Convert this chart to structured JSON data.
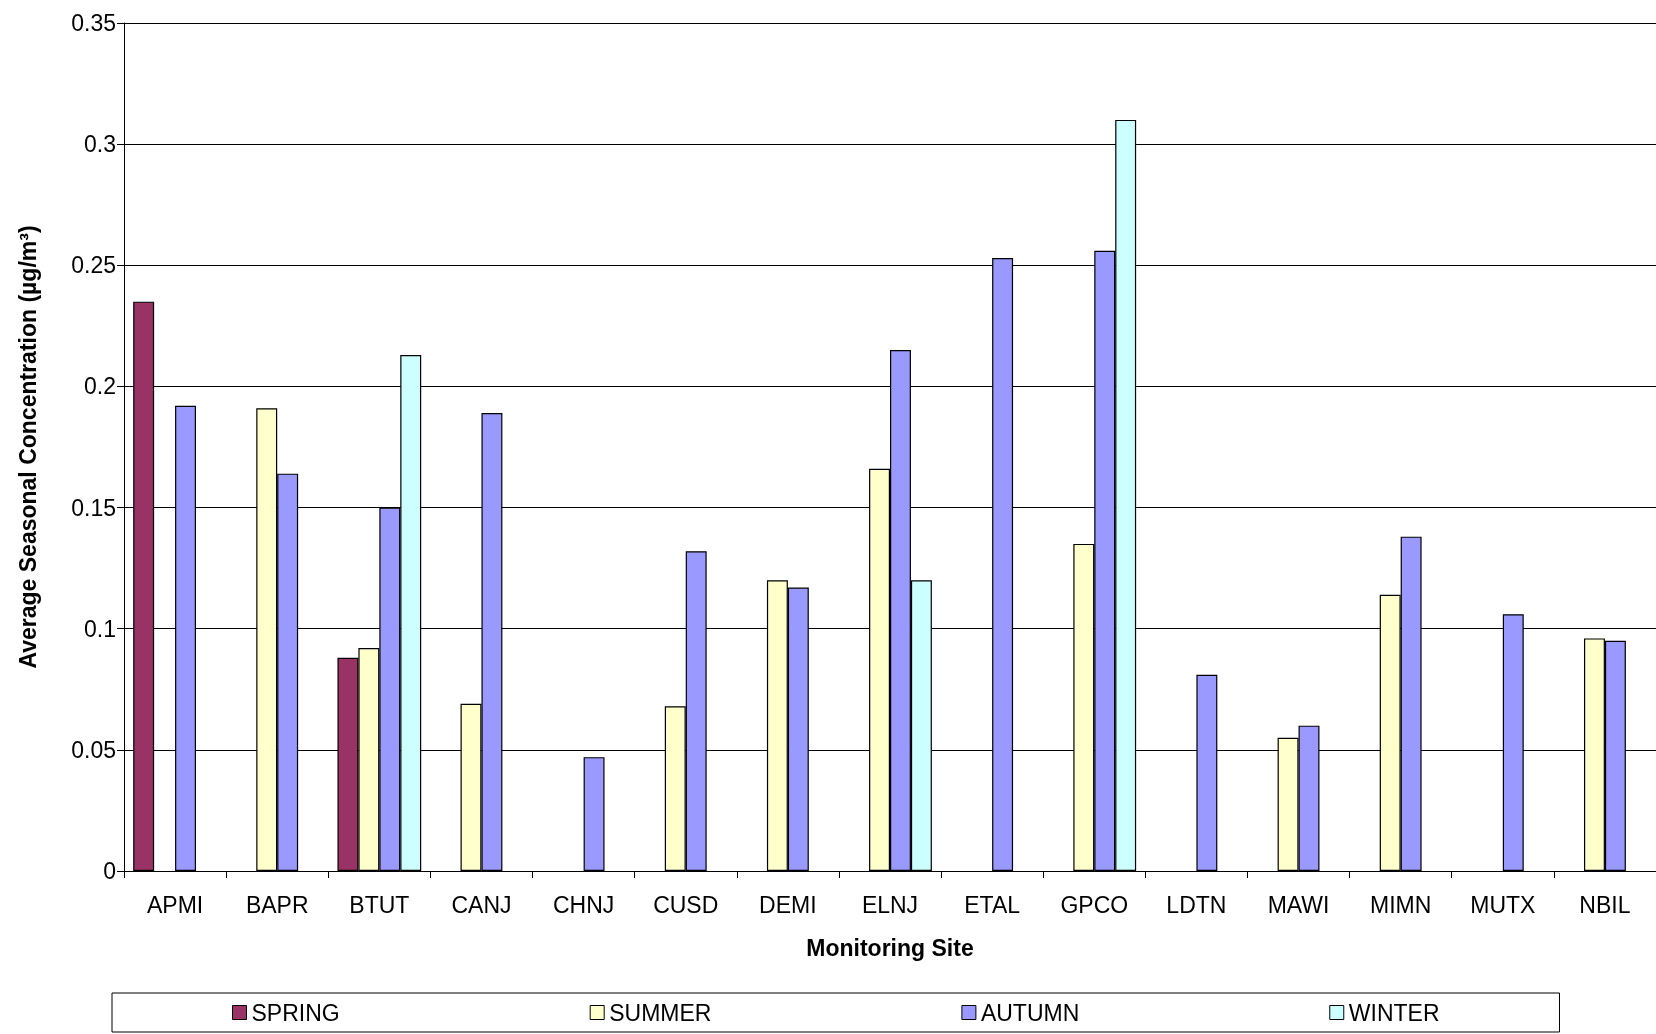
{
  "chart_data": {
    "type": "bar",
    "xlabel": "Monitoring Site",
    "ylabel": "Average Seasonal Concentration (µg/m³)",
    "categories": [
      "APMI",
      "BAPR",
      "BTUT",
      "CANJ",
      "CHNJ",
      "CUSD",
      "DEMI",
      "ELNJ",
      "ETAL",
      "GPCO",
      "LDTN",
      "MAWI",
      "MIMN",
      "MUTX",
      "NBIL"
    ],
    "series": [
      {
        "name": "SPRING",
        "color": "#993366",
        "values": [
          0.235,
          null,
          0.088,
          null,
          null,
          null,
          null,
          null,
          null,
          null,
          null,
          null,
          null,
          null,
          null
        ]
      },
      {
        "name": "SUMMER",
        "color": "#ffffcc",
        "values": [
          null,
          0.191,
          0.092,
          0.069,
          null,
          0.068,
          0.12,
          0.166,
          null,
          0.135,
          null,
          0.055,
          0.114,
          null,
          0.096
        ]
      },
      {
        "name": "AUTUMN",
        "color": "#9999ff",
        "values": [
          0.192,
          0.164,
          0.15,
          0.189,
          0.047,
          0.132,
          0.117,
          0.215,
          0.253,
          0.256,
          0.081,
          0.06,
          0.138,
          0.106,
          0.095
        ]
      },
      {
        "name": "WINTER",
        "color": "#ccffff",
        "values": [
          null,
          null,
          0.213,
          null,
          null,
          null,
          null,
          0.12,
          null,
          0.31,
          null,
          null,
          null,
          null,
          null
        ]
      }
    ],
    "ylim": [
      0,
      0.35
    ],
    "yticks": [
      0,
      0.05,
      0.1,
      0.15,
      0.2,
      0.25,
      0.3,
      0.35
    ],
    "grid": "y",
    "legend": "bottom"
  }
}
